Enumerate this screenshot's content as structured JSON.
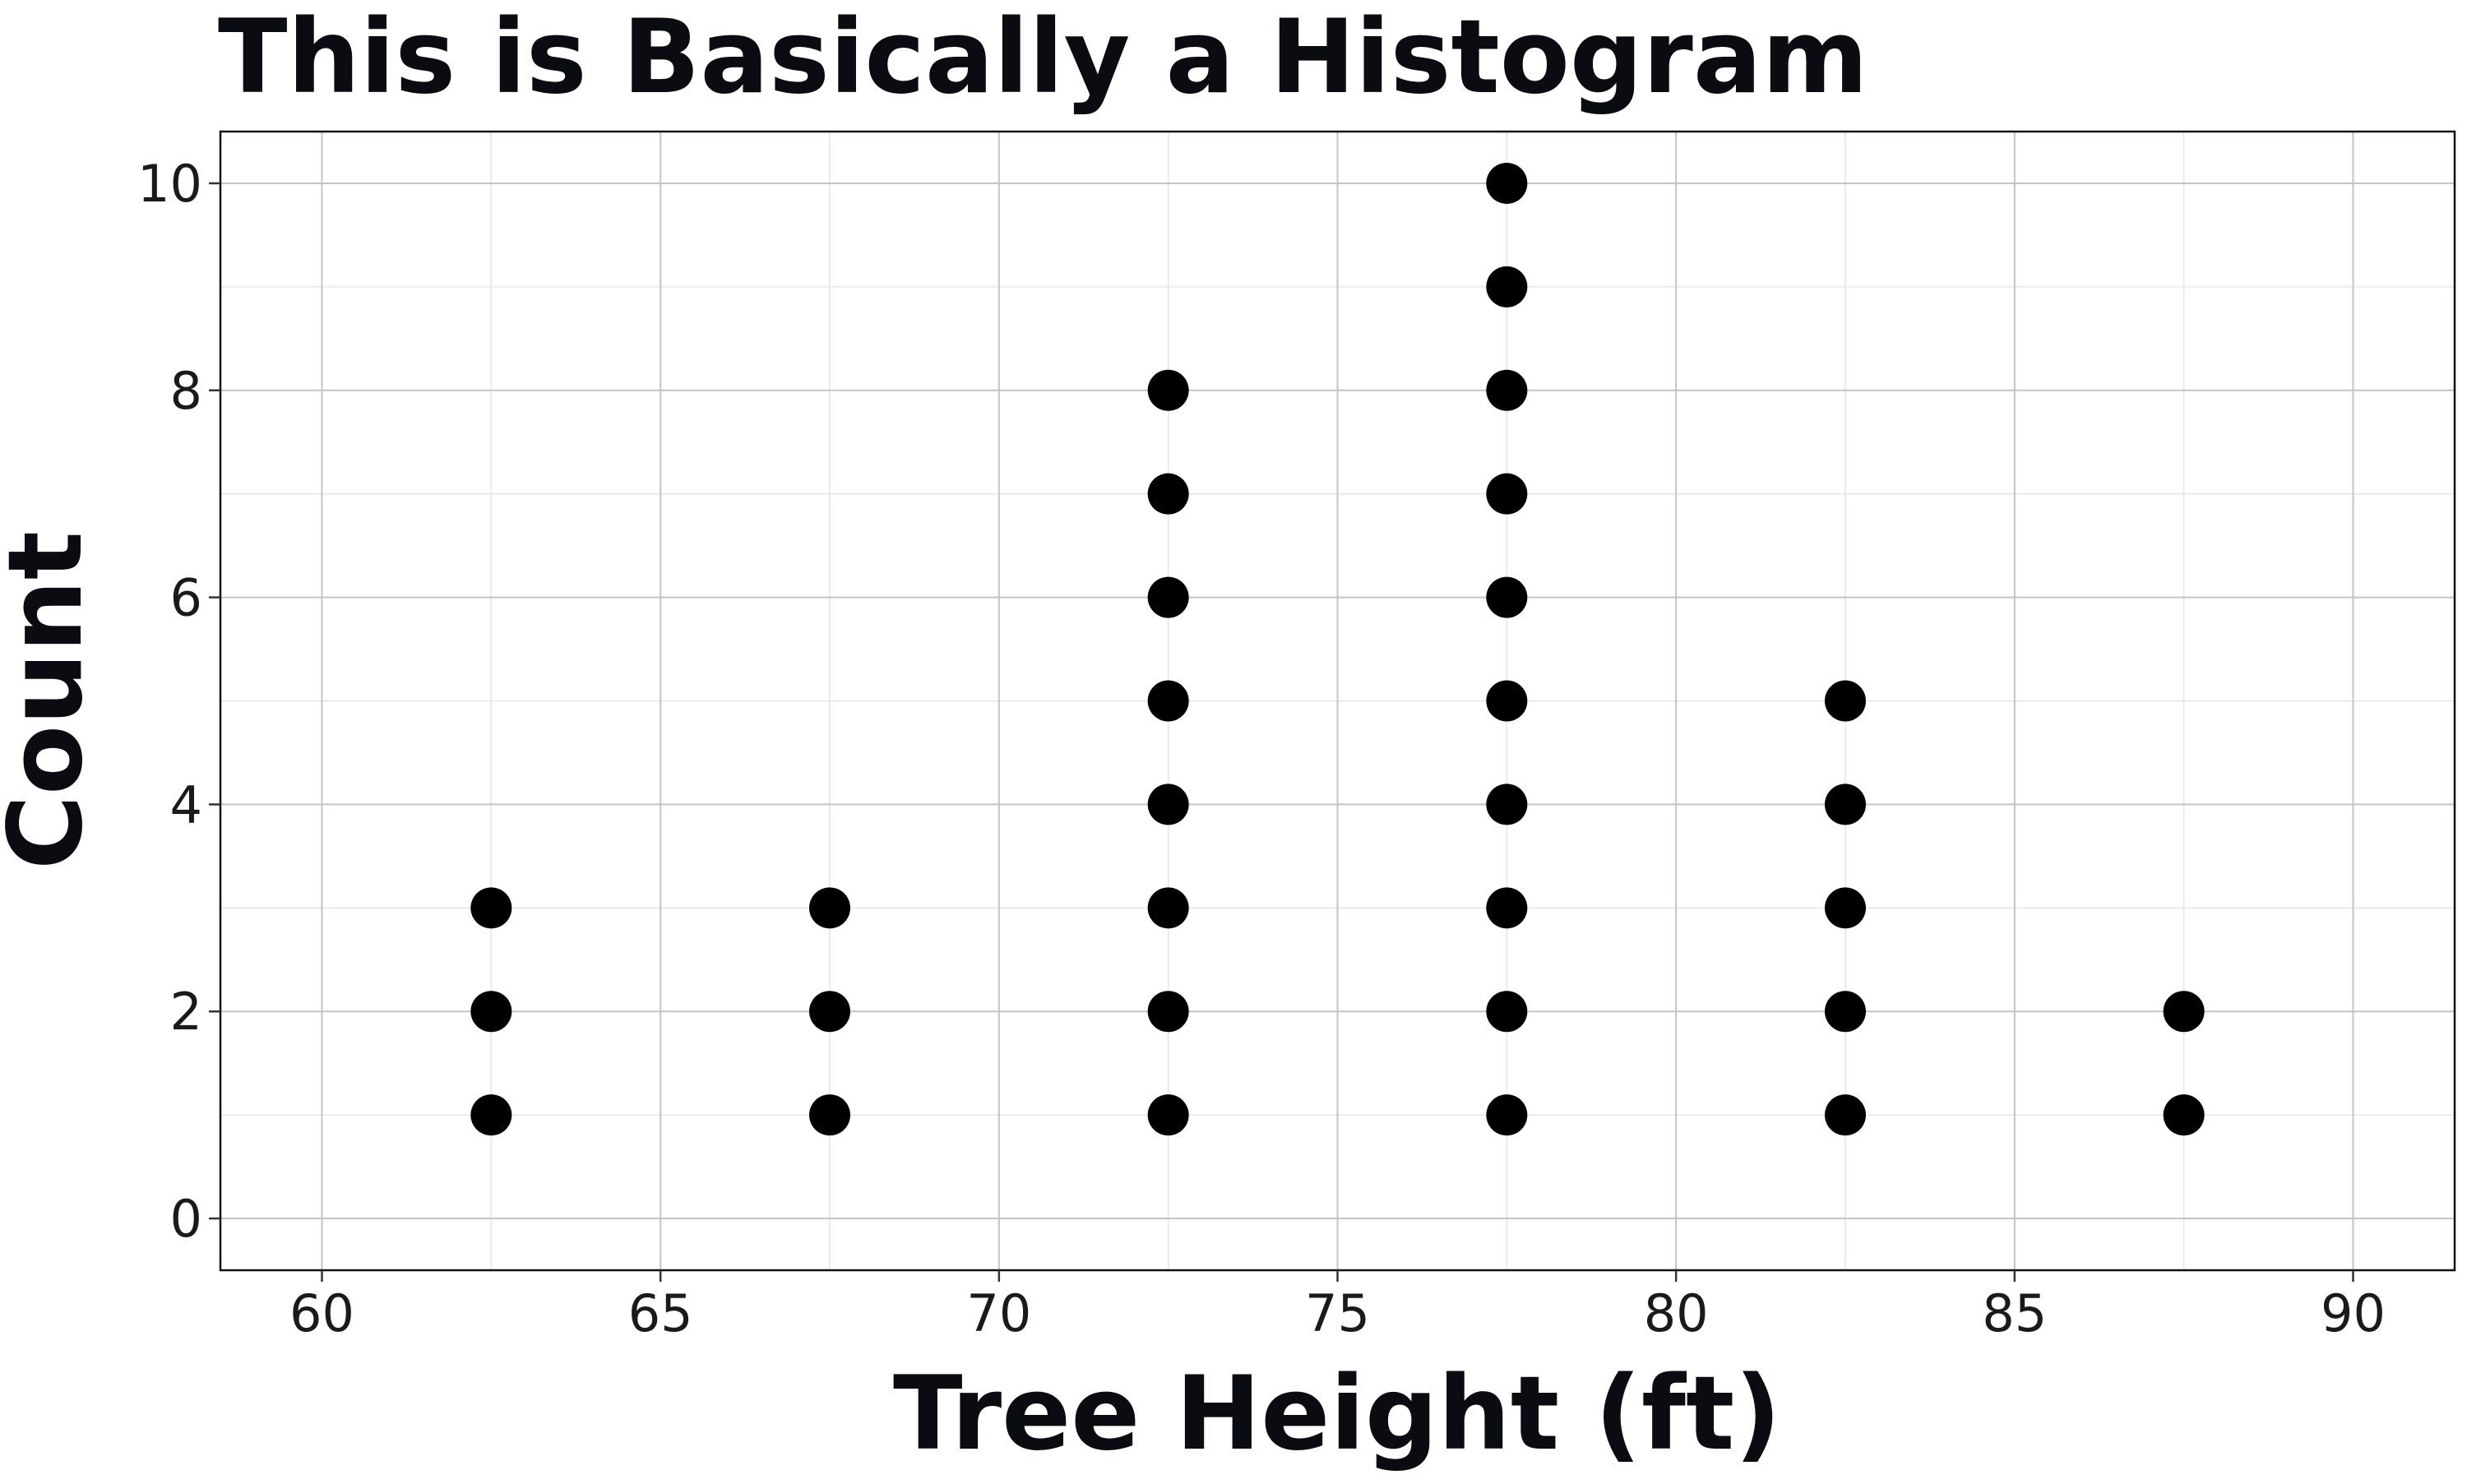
{
  "chart_data": {
    "type": "scatter",
    "subtype": "dot-plot",
    "title": "This is Basically a Histogram",
    "xlabel": "Tree Height (ft)",
    "ylabel": "Count",
    "xlim": [
      58.5,
      91.5
    ],
    "ylim": [
      -0.5,
      10.5
    ],
    "x_ticks": [
      60,
      65,
      70,
      75,
      80,
      85,
      90
    ],
    "y_ticks": [
      0,
      2,
      4,
      6,
      8,
      10
    ],
    "grid": true,
    "marker_color": "#000000",
    "series": [
      {
        "points": [
          {
            "x": 62.5,
            "y": 1
          },
          {
            "x": 62.5,
            "y": 2
          },
          {
            "x": 62.5,
            "y": 3
          },
          {
            "x": 67.5,
            "y": 1
          },
          {
            "x": 67.5,
            "y": 2
          },
          {
            "x": 67.5,
            "y": 3
          },
          {
            "x": 72.5,
            "y": 1
          },
          {
            "x": 72.5,
            "y": 2
          },
          {
            "x": 72.5,
            "y": 3
          },
          {
            "x": 72.5,
            "y": 4
          },
          {
            "x": 72.5,
            "y": 5
          },
          {
            "x": 72.5,
            "y": 6
          },
          {
            "x": 72.5,
            "y": 7
          },
          {
            "x": 72.5,
            "y": 8
          },
          {
            "x": 77.5,
            "y": 1
          },
          {
            "x": 77.5,
            "y": 2
          },
          {
            "x": 77.5,
            "y": 3
          },
          {
            "x": 77.5,
            "y": 4
          },
          {
            "x": 77.5,
            "y": 5
          },
          {
            "x": 77.5,
            "y": 6
          },
          {
            "x": 77.5,
            "y": 7
          },
          {
            "x": 77.5,
            "y": 8
          },
          {
            "x": 77.5,
            "y": 9
          },
          {
            "x": 77.5,
            "y": 10
          },
          {
            "x": 82.5,
            "y": 1
          },
          {
            "x": 82.5,
            "y": 2
          },
          {
            "x": 82.5,
            "y": 3
          },
          {
            "x": 82.5,
            "y": 4
          },
          {
            "x": 82.5,
            "y": 5
          },
          {
            "x": 87.5,
            "y": 1
          },
          {
            "x": 87.5,
            "y": 2
          }
        ]
      }
    ]
  }
}
